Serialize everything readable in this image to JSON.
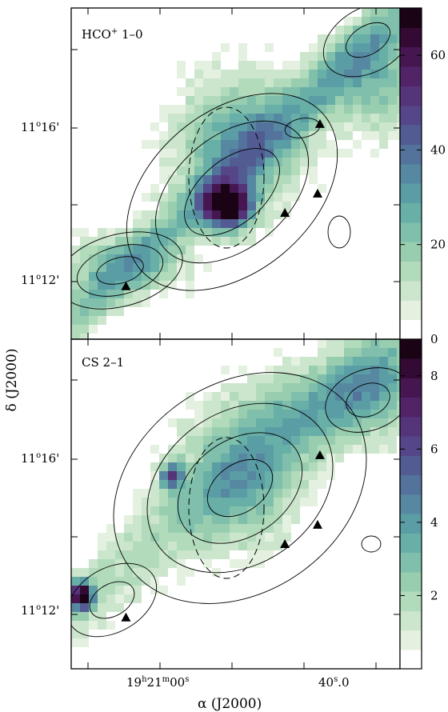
{
  "figure": {
    "xlabel": "α (J2000)",
    "ylabel": "δ (J2000)",
    "x_ticks": [
      {
        "h": "19",
        "m": "21",
        "s": "00",
        "dec": "",
        "unit": "s"
      },
      {
        "h": "",
        "m": "",
        "s": "40",
        "dec": ".0",
        "unit": "s"
      }
    ],
    "y_ticks": [
      {
        "deg": "11",
        "min": "16",
        "unit": "'"
      },
      {
        "deg": "11",
        "min": "12",
        "unit": "'"
      }
    ]
  },
  "chart_data": [
    {
      "type": "heatmap",
      "title": "HCO+ 1-0",
      "title_main": "HCO",
      "title_sup": "+",
      "title_rest": " 1–0",
      "colorbar_ticks": [
        "0",
        "20",
        "40",
        "60"
      ],
      "colorbar_range": [
        0,
        70
      ],
      "x_range": [
        "19h21m05s",
        "19h20m36s"
      ],
      "y_range": [
        "11°10.5'",
        "11°19'"
      ],
      "overlays": [
        "contours",
        "dashed ellipse",
        "triangle markers"
      ],
      "markers": [
        {
          "ra_offset_s": 16.5,
          "dec_arcmin": 16.0
        },
        {
          "ra_offset_s": 16.3,
          "dec_arcmin": 14.2
        },
        {
          "ra_offset_s": 13.5,
          "dec_arcmin": 13.7
        },
        {
          "ra_offset_s": 1.4,
          "dec_arcmin": 11.8
        }
      ],
      "peak": {
        "ra_offset_s": 12.5,
        "dec_arcmin": 13.9,
        "value": 70
      }
    },
    {
      "type": "heatmap",
      "title": "CS 2-1",
      "title_main": "CS 2–1",
      "title_sup": "",
      "title_rest": "",
      "colorbar_ticks": [
        "2",
        "4",
        "6",
        "8"
      ],
      "colorbar_range": [
        0,
        9
      ],
      "x_range": [
        "19h21m05s",
        "19h20m36s"
      ],
      "y_range": [
        "11°10.5'",
        "11°19'"
      ],
      "overlays": [
        "contours",
        "dashed ellipse",
        "triangle markers"
      ],
      "markers": [
        {
          "ra_offset_s": 16.5,
          "dec_arcmin": 16.0
        },
        {
          "ra_offset_s": 16.3,
          "dec_arcmin": 14.2
        },
        {
          "ra_offset_s": 13.5,
          "dec_arcmin": 13.7
        },
        {
          "ra_offset_s": 1.4,
          "dec_arcmin": 11.8
        }
      ],
      "peak": {
        "ra_offset_s": 1.0,
        "dec_arcmin": 12.0,
        "value": 9
      }
    }
  ]
}
